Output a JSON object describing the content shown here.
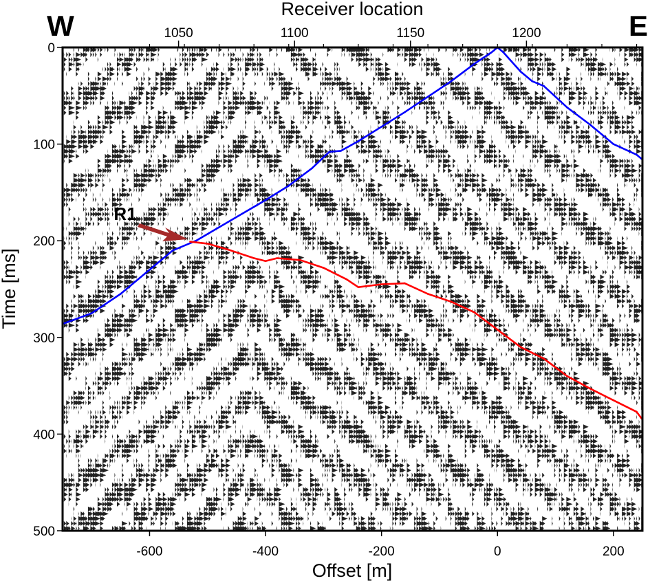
{
  "chart_data": {
    "type": "scatter",
    "title": "",
    "xlabel": "Offset [m]",
    "ylabel": "Time [ms]",
    "top_xlabel": "Receiver location",
    "corner_left": "W",
    "corner_right": "E",
    "annotation": "R1",
    "annotation_color": "#a52a2a",
    "xlim": [
      -750,
      250
    ],
    "ylim": [
      500,
      0
    ],
    "xticks": [
      -600,
      -400,
      -200,
      0,
      200
    ],
    "xtick_labels": [
      "-600",
      "-400",
      "-200",
      "0",
      "200"
    ],
    "yticks": [
      0,
      100,
      200,
      300,
      400,
      500
    ],
    "ytick_labels": [
      "0",
      "100",
      "200",
      "300",
      "400",
      "500"
    ],
    "top_ticks_offset": [
      -600,
      -540,
      -480,
      -420,
      -360,
      -300,
      -240,
      -180,
      -120,
      -60,
      0,
      60,
      120,
      180,
      240
    ],
    "top_ticks_receiver": [
      1050,
      1100,
      1150,
      1200
    ],
    "top_tick_labels": [
      "1050",
      "1100",
      "1150",
      "1200"
    ],
    "top_receiver_range": [
      1000,
      1250
    ],
    "series": [
      {
        "color": "#0000ff",
        "x": [
          -750,
          -700,
          -650,
          -600,
          -560,
          -520,
          -480,
          -440,
          -400,
          -360,
          -320,
          -290,
          -270,
          -240,
          -200,
          -160,
          -120,
          -80,
          -40,
          -10,
          0,
          10,
          40,
          60,
          80,
          120,
          160,
          200,
          240,
          250
        ],
        "y": [
          286,
          275,
          255,
          230,
          210,
          200,
          186,
          172,
          158,
          143,
          125,
          108,
          107,
          97,
          82,
          67,
          51,
          35,
          17,
          5,
          0,
          5,
          25,
          35,
          40,
          62,
          80,
          100,
          111,
          116
        ]
      },
      {
        "color": "#ff0000",
        "x": [
          -530,
          -500,
          -460,
          -420,
          -400,
          -380,
          -340,
          -300,
          -260,
          -240,
          -200,
          -160,
          -120,
          -80,
          -40,
          0,
          40,
          80,
          120,
          160,
          200,
          240,
          250
        ],
        "y": [
          201,
          203,
          210,
          218,
          221,
          218,
          220,
          228,
          240,
          248,
          245,
          244,
          255,
          263,
          274,
          292,
          310,
          322,
          340,
          353,
          365,
          377,
          385
        ]
      }
    ]
  }
}
